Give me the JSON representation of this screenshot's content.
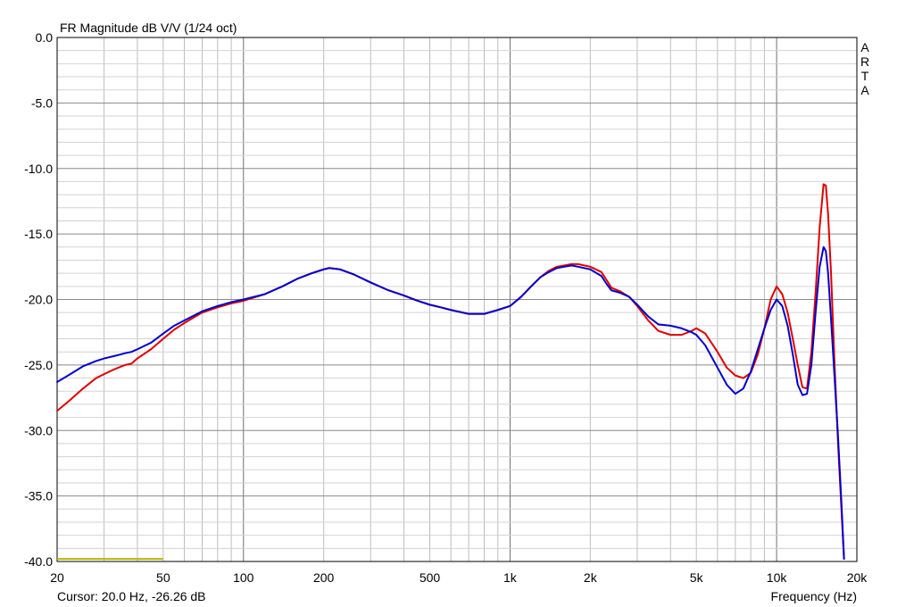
{
  "chart_data": {
    "type": "line",
    "title": "FR Magnitude dB V/V (1/24 oct)",
    "xlabel": "Frequency (Hz)",
    "ylabel": "",
    "watermark": "ARTA",
    "cursor_text": "Cursor: 20.0 Hz, -26.26 dB",
    "x_scale": "log",
    "xlim": [
      20,
      20000
    ],
    "ylim": [
      -40,
      0
    ],
    "grid": true,
    "legend": "none",
    "x_ticks": [
      {
        "value": 20,
        "label": "20"
      },
      {
        "value": 50,
        "label": "50"
      },
      {
        "value": 100,
        "label": "100"
      },
      {
        "value": 200,
        "label": "200"
      },
      {
        "value": 500,
        "label": "500"
      },
      {
        "value": 1000,
        "label": "1k"
      },
      {
        "value": 2000,
        "label": "2k"
      },
      {
        "value": 5000,
        "label": "5k"
      },
      {
        "value": 10000,
        "label": "10k"
      },
      {
        "value": 20000,
        "label": "20k"
      }
    ],
    "y_ticks": [
      {
        "value": 0,
        "label": "0.0"
      },
      {
        "value": -5,
        "label": "-5.0"
      },
      {
        "value": -10,
        "label": "-10.0"
      },
      {
        "value": -15,
        "label": "-15.0"
      },
      {
        "value": -20,
        "label": "-20.0"
      },
      {
        "value": -25,
        "label": "-25.0"
      },
      {
        "value": -30,
        "label": "-30.0"
      },
      {
        "value": -35,
        "label": "-35.0"
      },
      {
        "value": -40,
        "label": "-40.0"
      }
    ],
    "marker": {
      "x": [
        20,
        50
      ],
      "y": [
        -39.8,
        -39.8
      ],
      "color": "#b5b500"
    },
    "series": [
      {
        "color": "#e00000",
        "points": [
          [
            20,
            -28.5
          ],
          [
            22,
            -27.8
          ],
          [
            25,
            -26.8
          ],
          [
            28,
            -26.0
          ],
          [
            30,
            -25.7
          ],
          [
            33,
            -25.3
          ],
          [
            36,
            -25.0
          ],
          [
            38,
            -24.9
          ],
          [
            40,
            -24.5
          ],
          [
            45,
            -23.8
          ],
          [
            50,
            -23.0
          ],
          [
            55,
            -22.3
          ],
          [
            60,
            -21.8
          ],
          [
            70,
            -21.0
          ],
          [
            80,
            -20.6
          ],
          [
            90,
            -20.3
          ],
          [
            100,
            -20.1
          ],
          [
            120,
            -19.6
          ],
          [
            140,
            -19.0
          ],
          [
            160,
            -18.4
          ],
          [
            180,
            -18.0
          ],
          [
            200,
            -17.7
          ],
          [
            210,
            -17.6
          ],
          [
            230,
            -17.7
          ],
          [
            260,
            -18.1
          ],
          [
            300,
            -18.7
          ],
          [
            350,
            -19.3
          ],
          [
            400,
            -19.7
          ],
          [
            450,
            -20.1
          ],
          [
            500,
            -20.4
          ],
          [
            550,
            -20.6
          ],
          [
            600,
            -20.8
          ],
          [
            700,
            -21.1
          ],
          [
            800,
            -21.1
          ],
          [
            900,
            -20.8
          ],
          [
            1000,
            -20.5
          ],
          [
            1100,
            -19.8
          ],
          [
            1200,
            -19.0
          ],
          [
            1300,
            -18.3
          ],
          [
            1400,
            -17.8
          ],
          [
            1500,
            -17.5
          ],
          [
            1600,
            -17.4
          ],
          [
            1700,
            -17.3
          ],
          [
            1800,
            -17.3
          ],
          [
            2000,
            -17.5
          ],
          [
            2200,
            -17.9
          ],
          [
            2300,
            -18.5
          ],
          [
            2400,
            -19.1
          ],
          [
            2600,
            -19.4
          ],
          [
            2800,
            -19.8
          ],
          [
            3000,
            -20.5
          ],
          [
            3300,
            -21.6
          ],
          [
            3600,
            -22.4
          ],
          [
            4000,
            -22.7
          ],
          [
            4400,
            -22.7
          ],
          [
            4800,
            -22.4
          ],
          [
            5000,
            -22.2
          ],
          [
            5400,
            -22.6
          ],
          [
            6000,
            -24.0
          ],
          [
            6500,
            -25.2
          ],
          [
            7000,
            -25.8
          ],
          [
            7500,
            -26.0
          ],
          [
            8000,
            -25.6
          ],
          [
            8500,
            -24.2
          ],
          [
            9000,
            -22.2
          ],
          [
            9500,
            -20.0
          ],
          [
            10000,
            -19.0
          ],
          [
            10500,
            -19.6
          ],
          [
            11000,
            -21.0
          ],
          [
            11500,
            -23.0
          ],
          [
            12000,
            -25.0
          ],
          [
            12500,
            -26.7
          ],
          [
            13000,
            -26.8
          ],
          [
            13500,
            -24.0
          ],
          [
            14000,
            -19.5
          ],
          [
            14500,
            -14.5
          ],
          [
            15000,
            -11.2
          ],
          [
            15300,
            -11.3
          ],
          [
            15600,
            -13.5
          ],
          [
            16000,
            -18.0
          ],
          [
            16500,
            -25.0
          ],
          [
            17000,
            -31.0
          ],
          [
            17500,
            -36.0
          ],
          [
            17900,
            -39.8
          ]
        ]
      },
      {
        "color": "#0000d0",
        "points": [
          [
            20,
            -26.3
          ],
          [
            22,
            -25.8
          ],
          [
            25,
            -25.1
          ],
          [
            28,
            -24.7
          ],
          [
            30,
            -24.5
          ],
          [
            33,
            -24.3
          ],
          [
            36,
            -24.1
          ],
          [
            38,
            -24.0
          ],
          [
            40,
            -23.8
          ],
          [
            45,
            -23.3
          ],
          [
            50,
            -22.6
          ],
          [
            55,
            -22.0
          ],
          [
            60,
            -21.6
          ],
          [
            70,
            -20.9
          ],
          [
            80,
            -20.5
          ],
          [
            90,
            -20.2
          ],
          [
            100,
            -20.0
          ],
          [
            120,
            -19.6
          ],
          [
            140,
            -19.0
          ],
          [
            160,
            -18.4
          ],
          [
            180,
            -18.0
          ],
          [
            200,
            -17.7
          ],
          [
            210,
            -17.6
          ],
          [
            230,
            -17.7
          ],
          [
            260,
            -18.1
          ],
          [
            300,
            -18.7
          ],
          [
            350,
            -19.3
          ],
          [
            400,
            -19.7
          ],
          [
            450,
            -20.1
          ],
          [
            500,
            -20.4
          ],
          [
            550,
            -20.6
          ],
          [
            600,
            -20.8
          ],
          [
            700,
            -21.1
          ],
          [
            800,
            -21.1
          ],
          [
            900,
            -20.8
          ],
          [
            1000,
            -20.5
          ],
          [
            1100,
            -19.8
          ],
          [
            1200,
            -19.0
          ],
          [
            1300,
            -18.3
          ],
          [
            1400,
            -17.9
          ],
          [
            1500,
            -17.6
          ],
          [
            1600,
            -17.5
          ],
          [
            1700,
            -17.4
          ],
          [
            1800,
            -17.5
          ],
          [
            2000,
            -17.7
          ],
          [
            2200,
            -18.2
          ],
          [
            2300,
            -18.8
          ],
          [
            2400,
            -19.3
          ],
          [
            2600,
            -19.5
          ],
          [
            2800,
            -19.8
          ],
          [
            3000,
            -20.4
          ],
          [
            3300,
            -21.3
          ],
          [
            3600,
            -21.9
          ],
          [
            4000,
            -22.0
          ],
          [
            4400,
            -22.2
          ],
          [
            4800,
            -22.5
          ],
          [
            5000,
            -22.7
          ],
          [
            5400,
            -23.5
          ],
          [
            6000,
            -25.2
          ],
          [
            6500,
            -26.5
          ],
          [
            7000,
            -27.2
          ],
          [
            7500,
            -26.8
          ],
          [
            8000,
            -25.5
          ],
          [
            8500,
            -23.8
          ],
          [
            9000,
            -22.2
          ],
          [
            9500,
            -20.8
          ],
          [
            10000,
            -20.0
          ],
          [
            10500,
            -20.5
          ],
          [
            11000,
            -22.0
          ],
          [
            11500,
            -24.2
          ],
          [
            12000,
            -26.5
          ],
          [
            12500,
            -27.3
          ],
          [
            13000,
            -27.2
          ],
          [
            13500,
            -25.0
          ],
          [
            14000,
            -21.0
          ],
          [
            14500,
            -17.5
          ],
          [
            15000,
            -16.0
          ],
          [
            15300,
            -16.3
          ],
          [
            15600,
            -18.0
          ],
          [
            16000,
            -21.5
          ],
          [
            16500,
            -26.0
          ],
          [
            17000,
            -30.5
          ],
          [
            17500,
            -35.5
          ],
          [
            17900,
            -39.8
          ]
        ]
      }
    ]
  }
}
